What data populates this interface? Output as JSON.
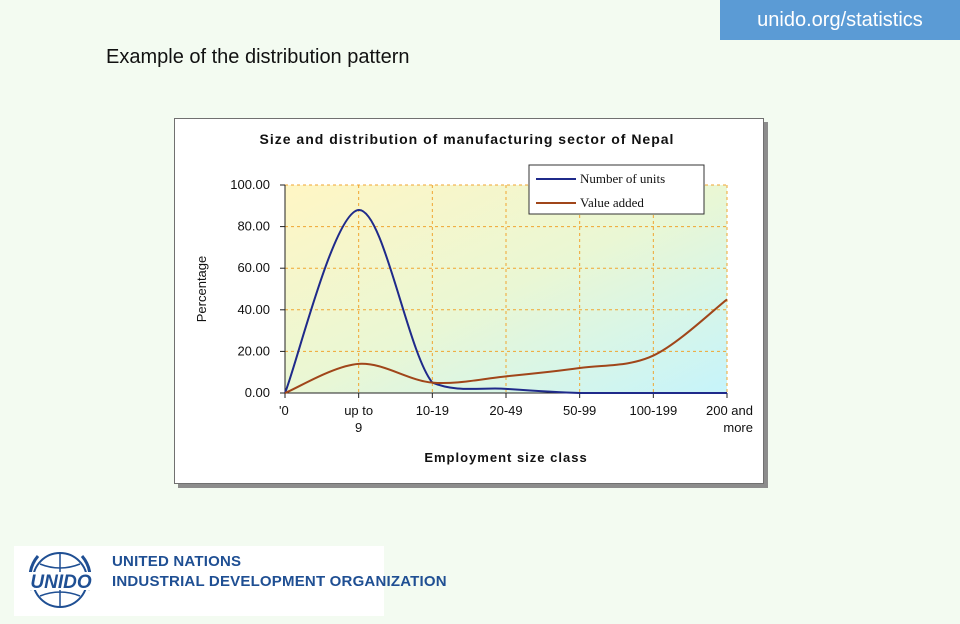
{
  "header": {
    "site": "unido.org/statistics",
    "slide_title": "Example of the distribution pattern"
  },
  "branding": {
    "logo_word": "UNIDO",
    "org_line1": "UNITED NATIONS",
    "org_line2": "INDUSTRIAL DEVELOPMENT ORGANIZATION"
  },
  "colors": {
    "badge": "#5b9bd5",
    "series_units": "#1f2a8a",
    "series_value": "#a0461a",
    "grid": "#f0a530"
  },
  "chart_data": {
    "type": "line",
    "title": "Size and distribution of manufacturing sector of Nepal",
    "xlabel": "Employment size class",
    "ylabel": "Percentage",
    "categories": [
      "'0",
      "up to 9",
      "10-19",
      "20-49",
      "50-99",
      "100-199",
      "200 and more"
    ],
    "ylim": [
      0,
      100
    ],
    "yticks": [
      "0.00",
      "20.00",
      "40.00",
      "60.00",
      "80.00",
      "100.00"
    ],
    "grid": true,
    "legend_position": "top-right",
    "smooth": true,
    "series": [
      {
        "name": "Number of units",
        "values": [
          0,
          88,
          5,
          2,
          0,
          0,
          0
        ]
      },
      {
        "name": "Value added",
        "values": [
          0,
          14,
          5,
          8,
          12,
          18,
          45
        ]
      }
    ]
  }
}
